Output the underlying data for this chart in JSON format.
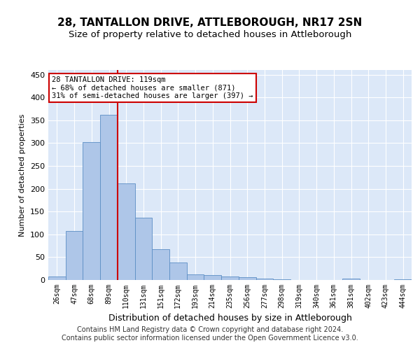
{
  "title": "28, TANTALLON DRIVE, ATTLEBOROUGH, NR17 2SN",
  "subtitle": "Size of property relative to detached houses in Attleborough",
  "xlabel": "Distribution of detached houses by size in Attleborough",
  "ylabel": "Number of detached properties",
  "categories": [
    "26sqm",
    "47sqm",
    "68sqm",
    "89sqm",
    "110sqm",
    "131sqm",
    "151sqm",
    "172sqm",
    "193sqm",
    "214sqm",
    "235sqm",
    "256sqm",
    "277sqm",
    "298sqm",
    "319sqm",
    "340sqm",
    "361sqm",
    "381sqm",
    "402sqm",
    "423sqm",
    "444sqm"
  ],
  "values": [
    8,
    108,
    302,
    362,
    212,
    136,
    68,
    38,
    13,
    10,
    8,
    6,
    3,
    2,
    0,
    0,
    0,
    3,
    0,
    0,
    2
  ],
  "bar_color": "#aec6e8",
  "bar_edgecolor": "#5b8ec4",
  "vline_color": "#cc0000",
  "annotation_text": "28 TANTALLON DRIVE: 119sqm\n← 68% of detached houses are smaller (871)\n31% of semi-detached houses are larger (397) →",
  "annotation_box_color": "white",
  "annotation_box_edgecolor": "#cc0000",
  "footnote": "Contains HM Land Registry data © Crown copyright and database right 2024.\nContains public sector information licensed under the Open Government Licence v3.0.",
  "ylim": [
    0,
    460
  ],
  "yticks": [
    0,
    50,
    100,
    150,
    200,
    250,
    300,
    350,
    400,
    450
  ],
  "bg_color": "#dce8f8",
  "fig_bg_color": "#ffffff",
  "title_fontsize": 11,
  "subtitle_fontsize": 9.5,
  "footnote_fontsize": 7,
  "ylabel_fontsize": 8,
  "xlabel_fontsize": 9
}
